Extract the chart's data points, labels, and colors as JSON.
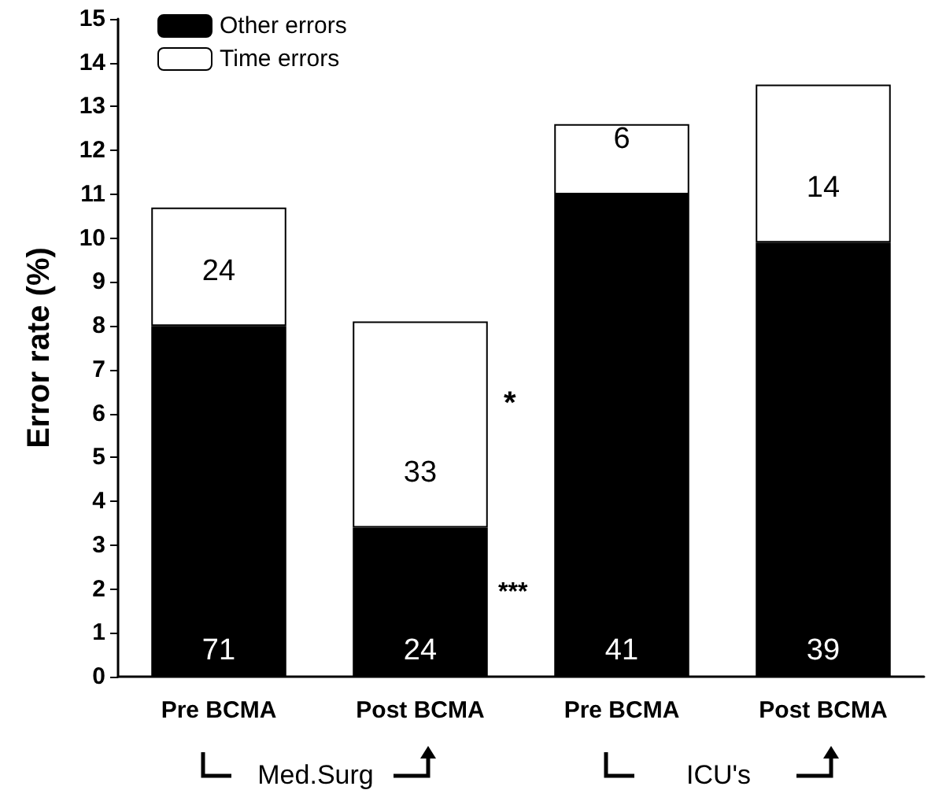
{
  "chart_data": {
    "type": "bar",
    "ylabel": "Error rate (%)",
    "categories": [
      "Pre BCMA",
      "Post BCMA",
      "Pre BCMA",
      "Post BCMA"
    ],
    "stacked": true,
    "series": [
      {
        "name": "Other errors",
        "color": "#000000",
        "values": [
          8.0,
          3.4,
          11.0,
          9.9
        ]
      },
      {
        "name": "Time errors",
        "color": "#ffffff",
        "values": [
          2.7,
          4.7,
          1.6,
          3.6
        ]
      }
    ],
    "ylim": [
      0,
      15
    ],
    "yticks": [
      0,
      1,
      2,
      3,
      4,
      5,
      6,
      7,
      8,
      9,
      10,
      11,
      12,
      13,
      14,
      15
    ],
    "grid": false,
    "legend": "top left",
    "annotations": [
      "*",
      "***",
      "Med.Surg",
      "ICU's",
      "71",
      "24",
      "41",
      "39",
      "24",
      "33",
      "6",
      "14"
    ]
  }
}
